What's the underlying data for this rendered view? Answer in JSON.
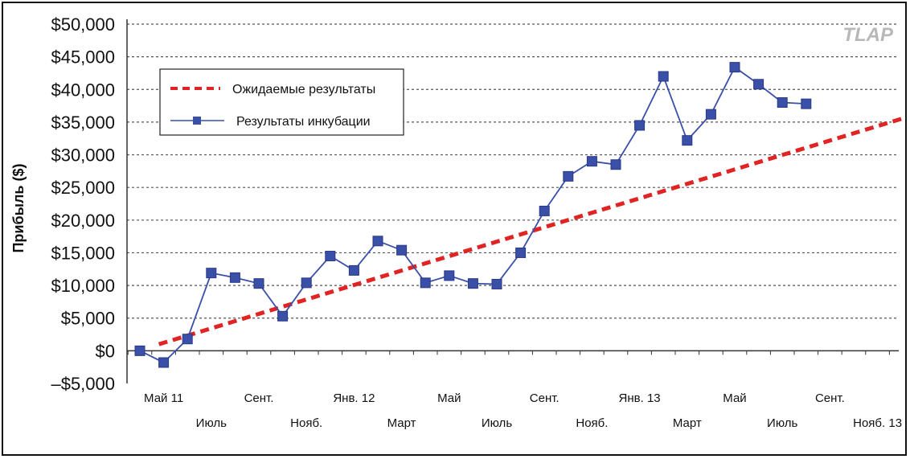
{
  "watermark": "TLAP",
  "legend": {
    "expected_label": "Ожидаемые результаты",
    "actual_label": "Результаты инкубации"
  },
  "colors": {
    "expected": "#e02424",
    "actual": "#3a4fa8",
    "grid": "#555555"
  },
  "chart_data": {
    "type": "line",
    "ylabel": "Прибыль ($)",
    "xlabel": "",
    "title": "",
    "ylim": [
      -5000,
      50000
    ],
    "yticks": [
      50000,
      45000,
      40000,
      35000,
      30000,
      25000,
      20000,
      15000,
      10000,
      5000,
      0,
      -5000
    ],
    "ytick_labels": [
      "$50,000",
      "$45,000",
      "$40,000",
      "$35,000",
      "$30,000",
      "$25,000",
      "$20,000",
      "$15,000",
      "$10,000",
      "$5,000",
      "$0",
      "–$5,000"
    ],
    "x_tick_labels": [
      {
        "index": 1,
        "text": "Май 11",
        "row": 1
      },
      {
        "index": 3,
        "text": "Июль",
        "row": 2
      },
      {
        "index": 5,
        "text": "Сент.",
        "row": 1
      },
      {
        "index": 7,
        "text": "Нояб.",
        "row": 2
      },
      {
        "index": 9,
        "text": "Янв. 12",
        "row": 1
      },
      {
        "index": 11,
        "text": "Март",
        "row": 2
      },
      {
        "index": 13,
        "text": "Май",
        "row": 1
      },
      {
        "index": 15,
        "text": "Июль",
        "row": 2
      },
      {
        "index": 17,
        "text": "Сент.",
        "row": 1
      },
      {
        "index": 19,
        "text": "Нояб.",
        "row": 2
      },
      {
        "index": 21,
        "text": "Янв. 13",
        "row": 1
      },
      {
        "index": 23,
        "text": "Март",
        "row": 2
      },
      {
        "index": 25,
        "text": "Май",
        "row": 1
      },
      {
        "index": 27,
        "text": "Июль",
        "row": 2
      },
      {
        "index": 29,
        "text": "Сент.",
        "row": 1
      },
      {
        "index": 31,
        "text": "Нояб. 13",
        "row": 2
      }
    ],
    "grid": true,
    "legend_position": "top-left",
    "series": [
      {
        "name": "Результаты инкубации",
        "style": "line-square-markers",
        "x": [
          0,
          1,
          2,
          3,
          4,
          5,
          6,
          7,
          8,
          9,
          10,
          11,
          12,
          13,
          14,
          15,
          16,
          17,
          18,
          19,
          20,
          21,
          22,
          23,
          24,
          25,
          26,
          27,
          28
        ],
        "values": [
          0,
          -1800,
          1800,
          11900,
          11200,
          10300,
          5300,
          10400,
          14500,
          12300,
          16800,
          15400,
          10400,
          11500,
          10300,
          10200,
          15000,
          21400,
          26700,
          29000,
          28500,
          34500,
          42000,
          32200,
          36200,
          43400,
          40800,
          38000,
          37800
        ]
      },
      {
        "name": "Ожидаемые результаты",
        "style": "dashed",
        "x": [
          0.8,
          32
        ],
        "values": [
          1000,
          35500
        ]
      }
    ]
  }
}
